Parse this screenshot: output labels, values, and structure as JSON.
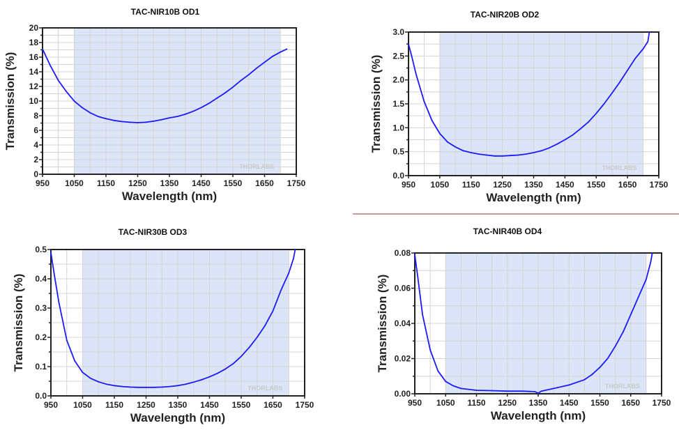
{
  "chart_data": [
    {
      "type": "line",
      "title": "TAC-NIR10B OD1",
      "xlabel": "Wavelength (nm)",
      "ylabel": "Transmission (%)",
      "xlim": [
        950,
        1750
      ],
      "ylim": [
        0,
        20
      ],
      "xticks": [
        950,
        1050,
        1150,
        1250,
        1350,
        1450,
        1550,
        1650,
        1750
      ],
      "yticks": [
        "0",
        "2",
        "4",
        "6",
        "8",
        "10",
        "12",
        "14",
        "16",
        "18",
        "20"
      ],
      "shaded_band": [
        1050,
        1700
      ],
      "grid": true,
      "watermark": "THORLABS",
      "x": [
        950,
        975,
        1000,
        1025,
        1050,
        1075,
        1100,
        1125,
        1150,
        1175,
        1200,
        1225,
        1250,
        1275,
        1300,
        1325,
        1350,
        1375,
        1400,
        1425,
        1450,
        1475,
        1500,
        1525,
        1550,
        1575,
        1600,
        1625,
        1650,
        1675,
        1700,
        1720
      ],
      "y": [
        17.1,
        14.8,
        12.8,
        11.3,
        10.0,
        9.1,
        8.4,
        7.9,
        7.6,
        7.35,
        7.2,
        7.1,
        7.05,
        7.1,
        7.25,
        7.45,
        7.7,
        7.9,
        8.2,
        8.6,
        9.1,
        9.7,
        10.4,
        11.1,
        11.9,
        12.8,
        13.6,
        14.5,
        15.3,
        16.1,
        16.7,
        17.1
      ]
    },
    {
      "type": "line",
      "title": "TAC-NIR20B OD2",
      "xlabel": "Wavelength (nm)",
      "ylabel": "Transmission (%)",
      "xlim": [
        950,
        1750
      ],
      "ylim": [
        0,
        3
      ],
      "xticks": [
        950,
        1050,
        1150,
        1250,
        1350,
        1450,
        1550,
        1650,
        1750
      ],
      "yticks": [
        "0.0",
        "0.5",
        "1.0",
        "1.5",
        "2.0",
        "2.5",
        "3.0"
      ],
      "shaded_band": [
        1050,
        1700
      ],
      "grid": true,
      "watermark": "THORLABS",
      "x": [
        950,
        960,
        975,
        1000,
        1025,
        1050,
        1075,
        1100,
        1125,
        1150,
        1175,
        1200,
        1225,
        1250,
        1275,
        1300,
        1325,
        1350,
        1375,
        1400,
        1425,
        1450,
        1475,
        1500,
        1525,
        1550,
        1575,
        1600,
        1625,
        1650,
        1675,
        1700,
        1715,
        1720
      ],
      "y": [
        2.75,
        2.5,
        2.1,
        1.55,
        1.15,
        0.88,
        0.7,
        0.6,
        0.52,
        0.48,
        0.45,
        0.43,
        0.41,
        0.41,
        0.42,
        0.43,
        0.45,
        0.48,
        0.52,
        0.58,
        0.66,
        0.75,
        0.85,
        0.98,
        1.12,
        1.3,
        1.5,
        1.72,
        1.95,
        2.2,
        2.45,
        2.65,
        2.8,
        3.0
      ]
    },
    {
      "type": "line",
      "title": "TAC-NIR30B OD3",
      "xlabel": "Wavelength (nm)",
      "ylabel": "Transmission (%)",
      "xlim": [
        950,
        1750
      ],
      "ylim": [
        0,
        0.5
      ],
      "xticks": [
        950,
        1050,
        1150,
        1250,
        1350,
        1450,
        1550,
        1650,
        1750
      ],
      "yticks": [
        "0.0",
        "0.1",
        "0.2",
        "0.3",
        "0.4",
        "0.5"
      ],
      "shaded_band": [
        1050,
        1700
      ],
      "grid": true,
      "watermark": "THORLABS",
      "x": [
        950,
        960,
        975,
        1000,
        1025,
        1050,
        1075,
        1100,
        1125,
        1150,
        1175,
        1200,
        1225,
        1250,
        1275,
        1300,
        1325,
        1350,
        1375,
        1400,
        1425,
        1450,
        1475,
        1500,
        1525,
        1550,
        1575,
        1600,
        1625,
        1650,
        1675,
        1700,
        1715,
        1720
      ],
      "y": [
        0.49,
        0.42,
        0.32,
        0.19,
        0.12,
        0.08,
        0.06,
        0.048,
        0.04,
        0.035,
        0.032,
        0.03,
        0.029,
        0.029,
        0.029,
        0.03,
        0.032,
        0.035,
        0.04,
        0.047,
        0.055,
        0.065,
        0.077,
        0.092,
        0.11,
        0.135,
        0.165,
        0.2,
        0.24,
        0.29,
        0.36,
        0.42,
        0.47,
        0.5
      ]
    },
    {
      "type": "line",
      "title": "TAC-NIR40B OD4",
      "xlabel": "Wavelength (nm)",
      "ylabel": "Transmission (%)",
      "xlim": [
        950,
        1750
      ],
      "ylim": [
        0,
        0.08
      ],
      "xticks": [
        950,
        1050,
        1150,
        1250,
        1350,
        1450,
        1550,
        1650,
        1750
      ],
      "yticks": [
        "0.00",
        "0.02",
        "0.04",
        "0.06",
        "0.08"
      ],
      "shaded_band": [
        1050,
        1700
      ],
      "grid": true,
      "watermark": "THORLABS",
      "x": [
        950,
        960,
        975,
        1000,
        1025,
        1050,
        1075,
        1100,
        1150,
        1200,
        1250,
        1300,
        1340,
        1350,
        1360,
        1400,
        1450,
        1500,
        1525,
        1550,
        1575,
        1600,
        1625,
        1650,
        1675,
        1700,
        1715,
        1720
      ],
      "y": [
        0.079,
        0.066,
        0.045,
        0.025,
        0.013,
        0.007,
        0.0045,
        0.003,
        0.002,
        0.0018,
        0.0015,
        0.0015,
        0.0012,
        0.0003,
        0.0015,
        0.003,
        0.005,
        0.008,
        0.011,
        0.015,
        0.02,
        0.027,
        0.035,
        0.045,
        0.055,
        0.065,
        0.075,
        0.08
      ]
    }
  ],
  "colors": {
    "line": "#1a1aff",
    "band": "#dbe5f7",
    "grid": "#d4d4d4",
    "divider": "#8b3a3a"
  }
}
